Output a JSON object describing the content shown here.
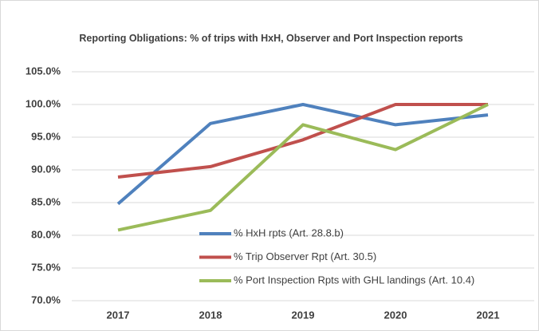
{
  "chart_data": {
    "type": "line",
    "title": "Reporting Obligations: % of trips with HxH, Observer and Port Inspection reports",
    "categories": [
      "2017",
      "2018",
      "2019",
      "2020",
      "2021"
    ],
    "series": [
      {
        "name": "% HxH rpts (Art. 28.8.b)",
        "color": "#4f81bd",
        "values": [
          84.8,
          97.1,
          100,
          96.9,
          98.4
        ]
      },
      {
        "name": "% Trip Observer Rpt (Art. 30.5)",
        "color": "#c0504d",
        "values": [
          88.9,
          90.5,
          94.6,
          100,
          100
        ]
      },
      {
        "name": "% Port Inspection Rpts with GHL landings (Art. 10.4)",
        "color": "#9bbb59",
        "values": [
          80.8,
          83.8,
          96.9,
          93.1,
          100
        ]
      }
    ],
    "ylim": [
      70,
      105
    ],
    "yticks": [
      {
        "value": 70,
        "label": "70.0%"
      },
      {
        "value": 75,
        "label": "75.0%"
      },
      {
        "value": 80,
        "label": "80.0%"
      },
      {
        "value": 85,
        "label": "85.0%"
      },
      {
        "value": 90,
        "label": "90.0%"
      },
      {
        "value": 95,
        "label": "95.0%"
      },
      {
        "value": 100,
        "label": "100.0%"
      },
      {
        "value": 105,
        "label": "105.0%"
      }
    ],
    "grid": true
  }
}
